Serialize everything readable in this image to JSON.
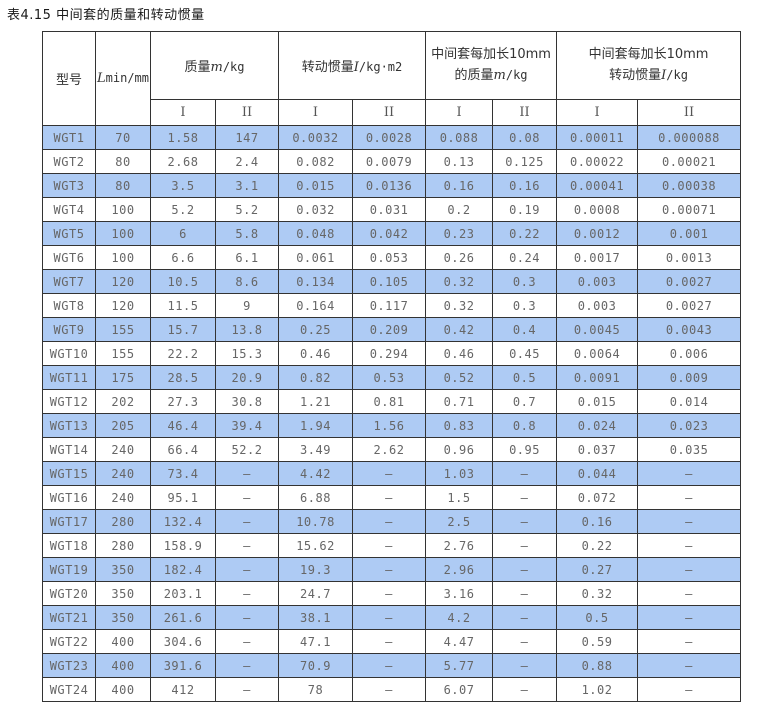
{
  "page": {
    "title": "表4.15 中间套的质量和转动惯量"
  },
  "colors": {
    "row_highlight": "#aecbf4",
    "border": "#333333",
    "data_text": "#666666",
    "header_text": "#333333"
  },
  "table": {
    "header": {
      "model": "型号",
      "lmin_symbol": "L",
      "lmin_unit": "min/mm",
      "mass_label": "质量",
      "mass_symbol": "m",
      "mass_unit": "/kg",
      "inertia_label": "转动惯量",
      "inertia_symbol": "I",
      "inertia_unit": "/kg·m2",
      "ext_mass_line1": "中间套每加长10mm",
      "ext_mass_line2_label": "的质量",
      "ext_mass_line2_symbol": "m",
      "ext_mass_line2_unit": "/kg",
      "ext_inertia_line1": "中间套每加长10mm",
      "ext_inertia_line2_label": "转动惯量",
      "ext_inertia_line2_symbol": "I",
      "ext_inertia_line2_unit": "/kg",
      "sub_col_1": "I",
      "sub_col_2": "II"
    },
    "rows": [
      [
        "WGT1",
        "70",
        "1.58",
        "147",
        "0.0032",
        "0.0028",
        "0.088",
        "0.08",
        "0.00011",
        "0.000088"
      ],
      [
        "WGT2",
        "80",
        "2.68",
        "2.4",
        "0.082",
        "0.0079",
        "0.13",
        "0.125",
        "0.00022",
        "0.00021"
      ],
      [
        "WGT3",
        "80",
        "3.5",
        "3.1",
        "0.015",
        "0.0136",
        "0.16",
        "0.16",
        "0.00041",
        "0.00038"
      ],
      [
        "WGT4",
        "100",
        "5.2",
        "5.2",
        "0.032",
        "0.031",
        "0.2",
        "0.19",
        "0.0008",
        "0.00071"
      ],
      [
        "WGT5",
        "100",
        "6",
        "5.8",
        "0.048",
        "0.042",
        "0.23",
        "0.22",
        "0.0012",
        "0.001"
      ],
      [
        "WGT6",
        "100",
        "6.6",
        "6.1",
        "0.061",
        "0.053",
        "0.26",
        "0.24",
        "0.0017",
        "0.0013"
      ],
      [
        "WGT7",
        "120",
        "10.5",
        "8.6",
        "0.134",
        "0.105",
        "0.32",
        "0.3",
        "0.003",
        "0.0027"
      ],
      [
        "WGT8",
        "120",
        "11.5",
        "9",
        "0.164",
        "0.117",
        "0.32",
        "0.3",
        "0.003",
        "0.0027"
      ],
      [
        "WGT9",
        "155",
        "15.7",
        "13.8",
        "0.25",
        "0.209",
        "0.42",
        "0.4",
        "0.0045",
        "0.0043"
      ],
      [
        "WGT10",
        "155",
        "22.2",
        "15.3",
        "0.46",
        "0.294",
        "0.46",
        "0.45",
        "0.0064",
        "0.006"
      ],
      [
        "WGT11",
        "175",
        "28.5",
        "20.9",
        "0.82",
        "0.53",
        "0.52",
        "0.5",
        "0.0091",
        "0.009"
      ],
      [
        "WGT12",
        "202",
        "27.3",
        "30.8",
        "1.21",
        "0.81",
        "0.71",
        "0.7",
        "0.015",
        "0.014"
      ],
      [
        "WGT13",
        "205",
        "46.4",
        "39.4",
        "1.94",
        "1.56",
        "0.83",
        "0.8",
        "0.024",
        "0.023"
      ],
      [
        "WGT14",
        "240",
        "66.4",
        "52.2",
        "3.49",
        "2.62",
        "0.96",
        "0.95",
        "0.037",
        "0.035"
      ],
      [
        "WGT15",
        "240",
        "73.4",
        "–",
        "4.42",
        "–",
        "1.03",
        "–",
        "0.044",
        "–"
      ],
      [
        "WGT16",
        "240",
        "95.1",
        "–",
        "6.88",
        "–",
        "1.5",
        "–",
        "0.072",
        "–"
      ],
      [
        "WGT17",
        "280",
        "132.4",
        "–",
        "10.78",
        "–",
        "2.5",
        "–",
        "0.16",
        "–"
      ],
      [
        "WGT18",
        "280",
        "158.9",
        "–",
        "15.62",
        "–",
        "2.76",
        "–",
        "0.22",
        "–"
      ],
      [
        "WGT19",
        "350",
        "182.4",
        "–",
        "19.3",
        "–",
        "2.96",
        "–",
        "0.27",
        "–"
      ],
      [
        "WGT20",
        "350",
        "203.1",
        "–",
        "24.7",
        "–",
        "3.16",
        "–",
        "0.32",
        "–"
      ],
      [
        "WGT21",
        "350",
        "261.6",
        "–",
        "38.1",
        "–",
        "4.2",
        "–",
        "0.5",
        "–"
      ],
      [
        "WGT22",
        "400",
        "304.6",
        "–",
        "47.1",
        "–",
        "4.47",
        "–",
        "0.59",
        "–"
      ],
      [
        "WGT23",
        "400",
        "391.6",
        "–",
        "70.9",
        "–",
        "5.77",
        "–",
        "0.88",
        "–"
      ],
      [
        "WGT24",
        "400",
        "412",
        "–",
        "78",
        "–",
        "6.07",
        "–",
        "1.02",
        "–"
      ]
    ]
  }
}
